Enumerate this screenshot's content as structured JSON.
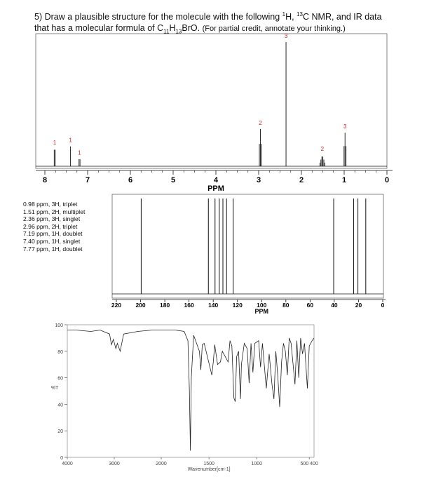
{
  "question": {
    "number": "5)",
    "line1_pre": "Draw a plausible structure for the molecule with the following ",
    "sup1": "1",
    "h": "H, ",
    "sup2": "13",
    "line1_post": "C NMR, and IR data",
    "line2_pre": "that has a molecular formula of C",
    "sub1": "11",
    "mid1": "H",
    "sub2": "13",
    "mid2": "BrO.",
    "note": "(For partial credit, annotate your thinking.)"
  },
  "h_nmr_peak_list": [
    "0.98 ppm, 3H, triplet",
    "1.51 ppm, 2H, multiplet",
    "2.36 ppm, 3H, singlet",
    "2.96 ppm, 2H, triplet",
    "7.19 ppm, 1H, doublet",
    "7.40 ppm, 1H, singlet",
    "7.77 ppm, 1H, doublet"
  ],
  "chart_data": [
    {
      "type": "line",
      "name": "1H NMR spectrum",
      "xlabel": "PPM",
      "xlim": [
        8,
        0
      ],
      "ticks": [
        "8",
        "7",
        "6",
        "5",
        "4",
        "3",
        "2",
        "1",
        "0"
      ],
      "tick_values": [
        8,
        7,
        6,
        5,
        4,
        3,
        2,
        1,
        0
      ],
      "peak_color": "#d22020",
      "peaks": [
        {
          "ppm": 7.77,
          "height": 0.14,
          "integration": "1",
          "lines": 2
        },
        {
          "ppm": 7.4,
          "height": 0.16,
          "integration": "1",
          "lines": 1
        },
        {
          "ppm": 7.19,
          "height": 0.06,
          "integration": "1",
          "lines": 2
        },
        {
          "ppm": 2.96,
          "height": 0.3,
          "integration": "2",
          "lines": 3
        },
        {
          "ppm": 2.36,
          "height": 1.0,
          "integration": "3",
          "lines": 1
        },
        {
          "ppm": 1.51,
          "height": 0.09,
          "integration": "2",
          "lines": 6
        },
        {
          "ppm": 0.98,
          "height": 0.27,
          "integration": "3",
          "lines": 3
        }
      ]
    },
    {
      "type": "bar",
      "name": "13C NMR spectrum",
      "xlabel": "PPM",
      "xlim": [
        220,
        0
      ],
      "ticks": [
        "220",
        "200",
        "180",
        "160",
        "140",
        "120",
        "100",
        "80",
        "60",
        "40",
        "20",
        "0"
      ],
      "tick_values": [
        220,
        200,
        180,
        160,
        140,
        120,
        100,
        80,
        60,
        40,
        20,
        0
      ],
      "peaks_ppm": [
        199.5,
        144.0,
        138.5,
        135.0,
        132.0,
        129.0,
        123.5,
        40.5,
        24.0,
        20.5,
        14.0
      ]
    },
    {
      "type": "line",
      "name": "IR spectrum",
      "xlabel": "Wavenumber[cm-1]",
      "ylabel": "%T",
      "xlim": [
        4000,
        400
      ],
      "ylim": [
        0,
        100
      ],
      "xticks": [
        "4000",
        "3000",
        "2000",
        "1500",
        "1000",
        "500 400"
      ],
      "xtick_values": [
        4000,
        3000,
        2000,
        1500,
        1000,
        450
      ],
      "yticks": [
        "0",
        "20",
        "40",
        "60",
        "80",
        "100"
      ],
      "ytick_values": [
        0,
        20,
        40,
        60,
        80,
        100
      ],
      "points": [
        [
          4000,
          96
        ],
        [
          3800,
          96
        ],
        [
          3500,
          95
        ],
        [
          3300,
          96
        ],
        [
          3100,
          93
        ],
        [
          3060,
          85
        ],
        [
          3020,
          89
        ],
        [
          2965,
          82
        ],
        [
          2935,
          86
        ],
        [
          2875,
          80
        ],
        [
          2800,
          93
        ],
        [
          2500,
          95
        ],
        [
          2200,
          96
        ],
        [
          2000,
          96
        ],
        [
          1850,
          96
        ],
        [
          1760,
          95
        ],
        [
          1720,
          88
        ],
        [
          1705,
          50
        ],
        [
          1695,
          5
        ],
        [
          1685,
          60
        ],
        [
          1660,
          92
        ],
        [
          1600,
          80
        ],
        [
          1585,
          66
        ],
        [
          1570,
          85
        ],
        [
          1550,
          86
        ],
        [
          1470,
          62
        ],
        [
          1455,
          72
        ],
        [
          1440,
          85
        ],
        [
          1410,
          70
        ],
        [
          1380,
          72
        ],
        [
          1360,
          80
        ],
        [
          1300,
          72
        ],
        [
          1280,
          88
        ],
        [
          1260,
          84
        ],
        [
          1240,
          45
        ],
        [
          1225,
          42
        ],
        [
          1210,
          76
        ],
        [
          1190,
          80
        ],
        [
          1170,
          44
        ],
        [
          1160,
          70
        ],
        [
          1130,
          86
        ],
        [
          1100,
          82
        ],
        [
          1080,
          56
        ],
        [
          1060,
          86
        ],
        [
          1040,
          64
        ],
        [
          1020,
          86
        ],
        [
          980,
          88
        ],
        [
          960,
          68
        ],
        [
          940,
          86
        ],
        [
          900,
          52
        ],
        [
          870,
          78
        ],
        [
          840,
          55
        ],
        [
          820,
          44
        ],
        [
          800,
          80
        ],
        [
          780,
          62
        ],
        [
          760,
          38
        ],
        [
          740,
          72
        ],
        [
          720,
          86
        ],
        [
          700,
          80
        ],
        [
          680,
          62
        ],
        [
          660,
          90
        ],
        [
          640,
          86
        ],
        [
          600,
          55
        ],
        [
          580,
          88
        ],
        [
          560,
          60
        ],
        [
          540,
          90
        ],
        [
          520,
          78
        ],
        [
          500,
          86
        ],
        [
          470,
          52
        ],
        [
          450,
          84
        ],
        [
          420,
          88
        ],
        [
          400,
          90
        ]
      ]
    }
  ]
}
